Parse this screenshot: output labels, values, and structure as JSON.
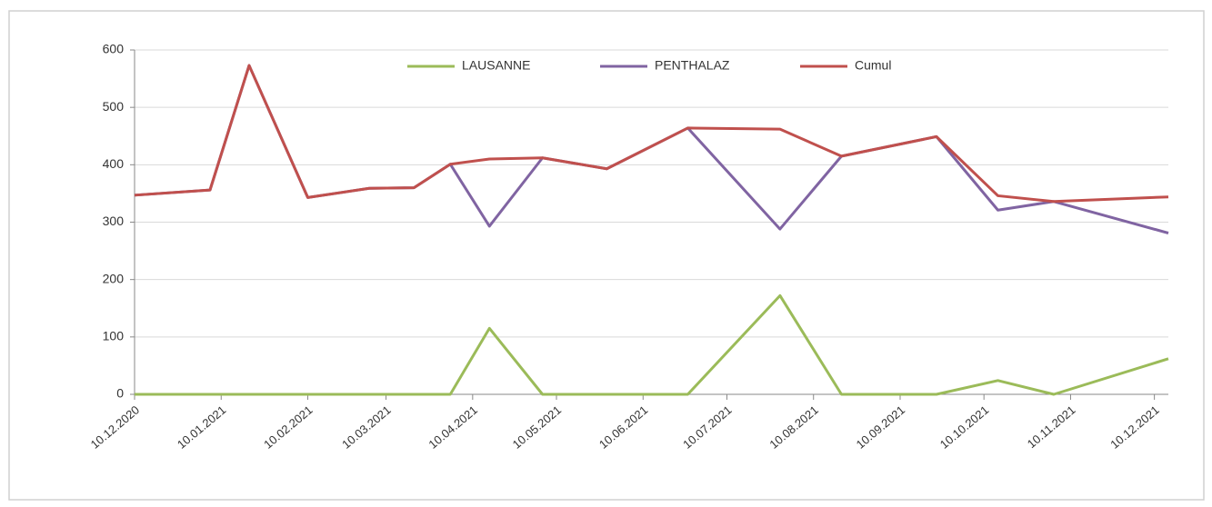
{
  "chart_data": {
    "type": "line",
    "x": [
      "2020-12-10",
      "2021-01-06",
      "2021-01-20",
      "2021-02-10",
      "2021-03-04",
      "2021-03-20",
      "2021-04-02",
      "2021-04-16",
      "2021-05-05",
      "2021-05-28",
      "2021-06-26",
      "2021-07-29",
      "2021-08-20",
      "2021-09-23",
      "2021-10-15",
      "2021-11-04",
      "2021-12-15"
    ],
    "series": [
      {
        "name": "LAUSANNE",
        "color": "#9bbb59",
        "values": [
          0,
          0,
          0,
          0,
          0,
          0,
          0,
          115,
          0,
          0,
          0,
          172,
          0,
          0,
          24,
          0,
          62
        ]
      },
      {
        "name": "PENTHALAZ",
        "color": "#8064a2",
        "values": [
          347,
          356,
          573,
          343,
          359,
          360,
          401,
          293,
          412,
          393,
          464,
          288,
          415,
          449,
          321,
          336,
          281
        ]
      },
      {
        "name": "Cumul",
        "color": "#c0504d",
        "values": [
          347,
          356,
          573,
          343,
          359,
          360,
          401,
          410,
          412,
          393,
          464,
          462,
          415,
          449,
          346,
          336,
          344
        ]
      }
    ],
    "xlim": [
      "2020-12-10",
      "2021-12-15"
    ],
    "xticks": [
      {
        "value": "2020-12-10",
        "label": "10.12.2020"
      },
      {
        "value": "2021-01-10",
        "label": "10.01.2021"
      },
      {
        "value": "2021-02-10",
        "label": "10.02.2021"
      },
      {
        "value": "2021-03-10",
        "label": "10.03.2021"
      },
      {
        "value": "2021-04-10",
        "label": "10.04.2021"
      },
      {
        "value": "2021-05-10",
        "label": "10.05.2021"
      },
      {
        "value": "2021-06-10",
        "label": "10.06.2021"
      },
      {
        "value": "2021-07-10",
        "label": "10.07.2021"
      },
      {
        "value": "2021-08-10",
        "label": "10.08.2021"
      },
      {
        "value": "2021-09-10",
        "label": "10.09.2021"
      },
      {
        "value": "2021-10-10",
        "label": "10.10.2021"
      },
      {
        "value": "2021-11-10",
        "label": "10.11.2021"
      },
      {
        "value": "2021-12-10",
        "label": "10.12.2021"
      }
    ],
    "ylim": [
      0,
      600
    ],
    "yticks": [
      0,
      100,
      200,
      300,
      400,
      500,
      600
    ],
    "grid": true,
    "legend": "top"
  }
}
